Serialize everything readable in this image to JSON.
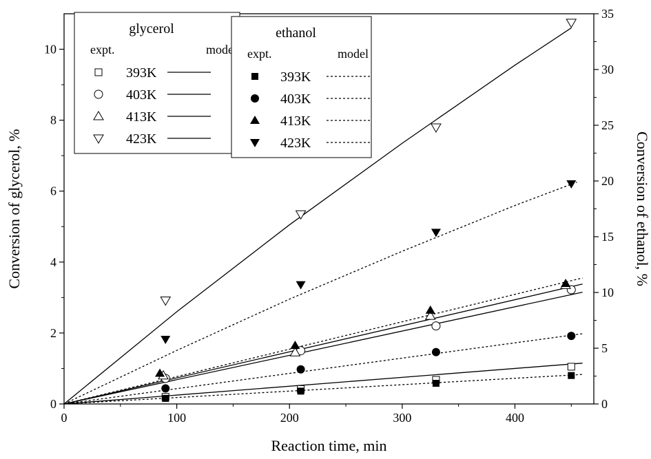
{
  "chart_data": {
    "type": "scatter",
    "xlabel": "Reaction time, min",
    "ylabel_left": "Conversion of glycerol, %",
    "ylabel_right": "Conversion of ethanol, %",
    "xlim": [
      0,
      470
    ],
    "ylim_left": [
      0,
      11
    ],
    "ylim_right": [
      0,
      35
    ],
    "x_ticks": [
      0,
      100,
      200,
      300,
      400
    ],
    "y_ticks_left": [
      0,
      2,
      4,
      6,
      8,
      10
    ],
    "y_ticks_right": [
      0,
      5,
      10,
      15,
      20,
      25,
      30,
      35
    ],
    "grid": false,
    "legends": [
      {
        "title": "glycerol",
        "col_expt": "expt.",
        "col_model": "model",
        "placement": "top-left",
        "entries": [
          {
            "marker": "open-square",
            "label": "393K",
            "line": "solid"
          },
          {
            "marker": "open-circle",
            "label": "403K",
            "line": "solid"
          },
          {
            "marker": "open-triangle-up",
            "label": "413K",
            "line": "solid"
          },
          {
            "marker": "open-triangle-down",
            "label": "423K",
            "line": "solid"
          }
        ]
      },
      {
        "title": "ethanol",
        "col_expt": "expt.",
        "col_model": "model",
        "placement": "top-center",
        "entries": [
          {
            "marker": "filled-square",
            "label": "393K",
            "line": "dotted"
          },
          {
            "marker": "filled-circle",
            "label": "403K",
            "line": "dotted"
          },
          {
            "marker": "filled-triangle-up",
            "label": "413K",
            "line": "dotted"
          },
          {
            "marker": "filled-triangle-down",
            "label": "423K",
            "line": "dotted"
          }
        ]
      }
    ],
    "series": [
      {
        "group": "glycerol",
        "temp": "393K",
        "axis": "left",
        "marker": "open-square",
        "points": [
          [
            90,
            0.2
          ],
          [
            210,
            0.42
          ],
          [
            330,
            0.68
          ],
          [
            450,
            1.05
          ]
        ],
        "model": [
          [
            0,
            0
          ],
          [
            460,
            1.15
          ]
        ]
      },
      {
        "group": "glycerol",
        "temp": "403K",
        "axis": "left",
        "marker": "open-circle",
        "points": [
          [
            90,
            0.72
          ],
          [
            210,
            1.5
          ],
          [
            330,
            2.2
          ],
          [
            450,
            3.22
          ]
        ],
        "model": [
          [
            0,
            0
          ],
          [
            460,
            3.15
          ]
        ]
      },
      {
        "group": "glycerol",
        "temp": "413K",
        "axis": "left",
        "marker": "open-triangle-up",
        "points": [
          [
            88,
            0.8
          ],
          [
            205,
            1.45
          ],
          [
            325,
            2.48
          ],
          [
            445,
            3.35
          ]
        ],
        "model": [
          [
            0,
            0
          ],
          [
            460,
            3.38
          ]
        ]
      },
      {
        "group": "glycerol",
        "temp": "423K",
        "axis": "left",
        "marker": "open-triangle-down",
        "points": [
          [
            90,
            2.92
          ],
          [
            210,
            5.35
          ],
          [
            330,
            7.8
          ],
          [
            450,
            10.75
          ]
        ],
        "model": [
          [
            0,
            0
          ],
          [
            100,
            2.6
          ],
          [
            200,
            5.05
          ],
          [
            300,
            7.35
          ],
          [
            400,
            9.55
          ],
          [
            450,
            10.6
          ]
        ]
      },
      {
        "group": "ethanol",
        "temp": "393K",
        "axis": "right",
        "marker": "filled-square",
        "points": [
          [
            90,
            0.5
          ],
          [
            210,
            1.15
          ],
          [
            330,
            1.85
          ],
          [
            450,
            2.55
          ]
        ],
        "model": [
          [
            0,
            0
          ],
          [
            460,
            2.65
          ]
        ]
      },
      {
        "group": "ethanol",
        "temp": "403K",
        "axis": "right",
        "marker": "filled-circle",
        "points": [
          [
            90,
            1.4
          ],
          [
            210,
            3.1
          ],
          [
            330,
            4.65
          ],
          [
            450,
            6.1
          ]
        ],
        "model": [
          [
            0,
            0
          ],
          [
            460,
            6.3
          ]
        ]
      },
      {
        "group": "ethanol",
        "temp": "413K",
        "axis": "right",
        "marker": "filled-triangle-up",
        "points": [
          [
            85,
            2.75
          ],
          [
            205,
            5.25
          ],
          [
            325,
            8.4
          ],
          [
            445,
            10.8
          ]
        ],
        "model": [
          [
            0,
            0
          ],
          [
            460,
            11.3
          ]
        ]
      },
      {
        "group": "ethanol",
        "temp": "423K",
        "axis": "right",
        "marker": "filled-triangle-down",
        "points": [
          [
            90,
            5.8
          ],
          [
            210,
            10.7
          ],
          [
            330,
            15.4
          ],
          [
            450,
            19.75
          ]
        ],
        "model": [
          [
            0,
            0
          ],
          [
            100,
            4.8
          ],
          [
            200,
            9.4
          ],
          [
            300,
            13.7
          ],
          [
            400,
            17.8
          ],
          [
            455,
            19.9
          ]
        ]
      }
    ]
  }
}
